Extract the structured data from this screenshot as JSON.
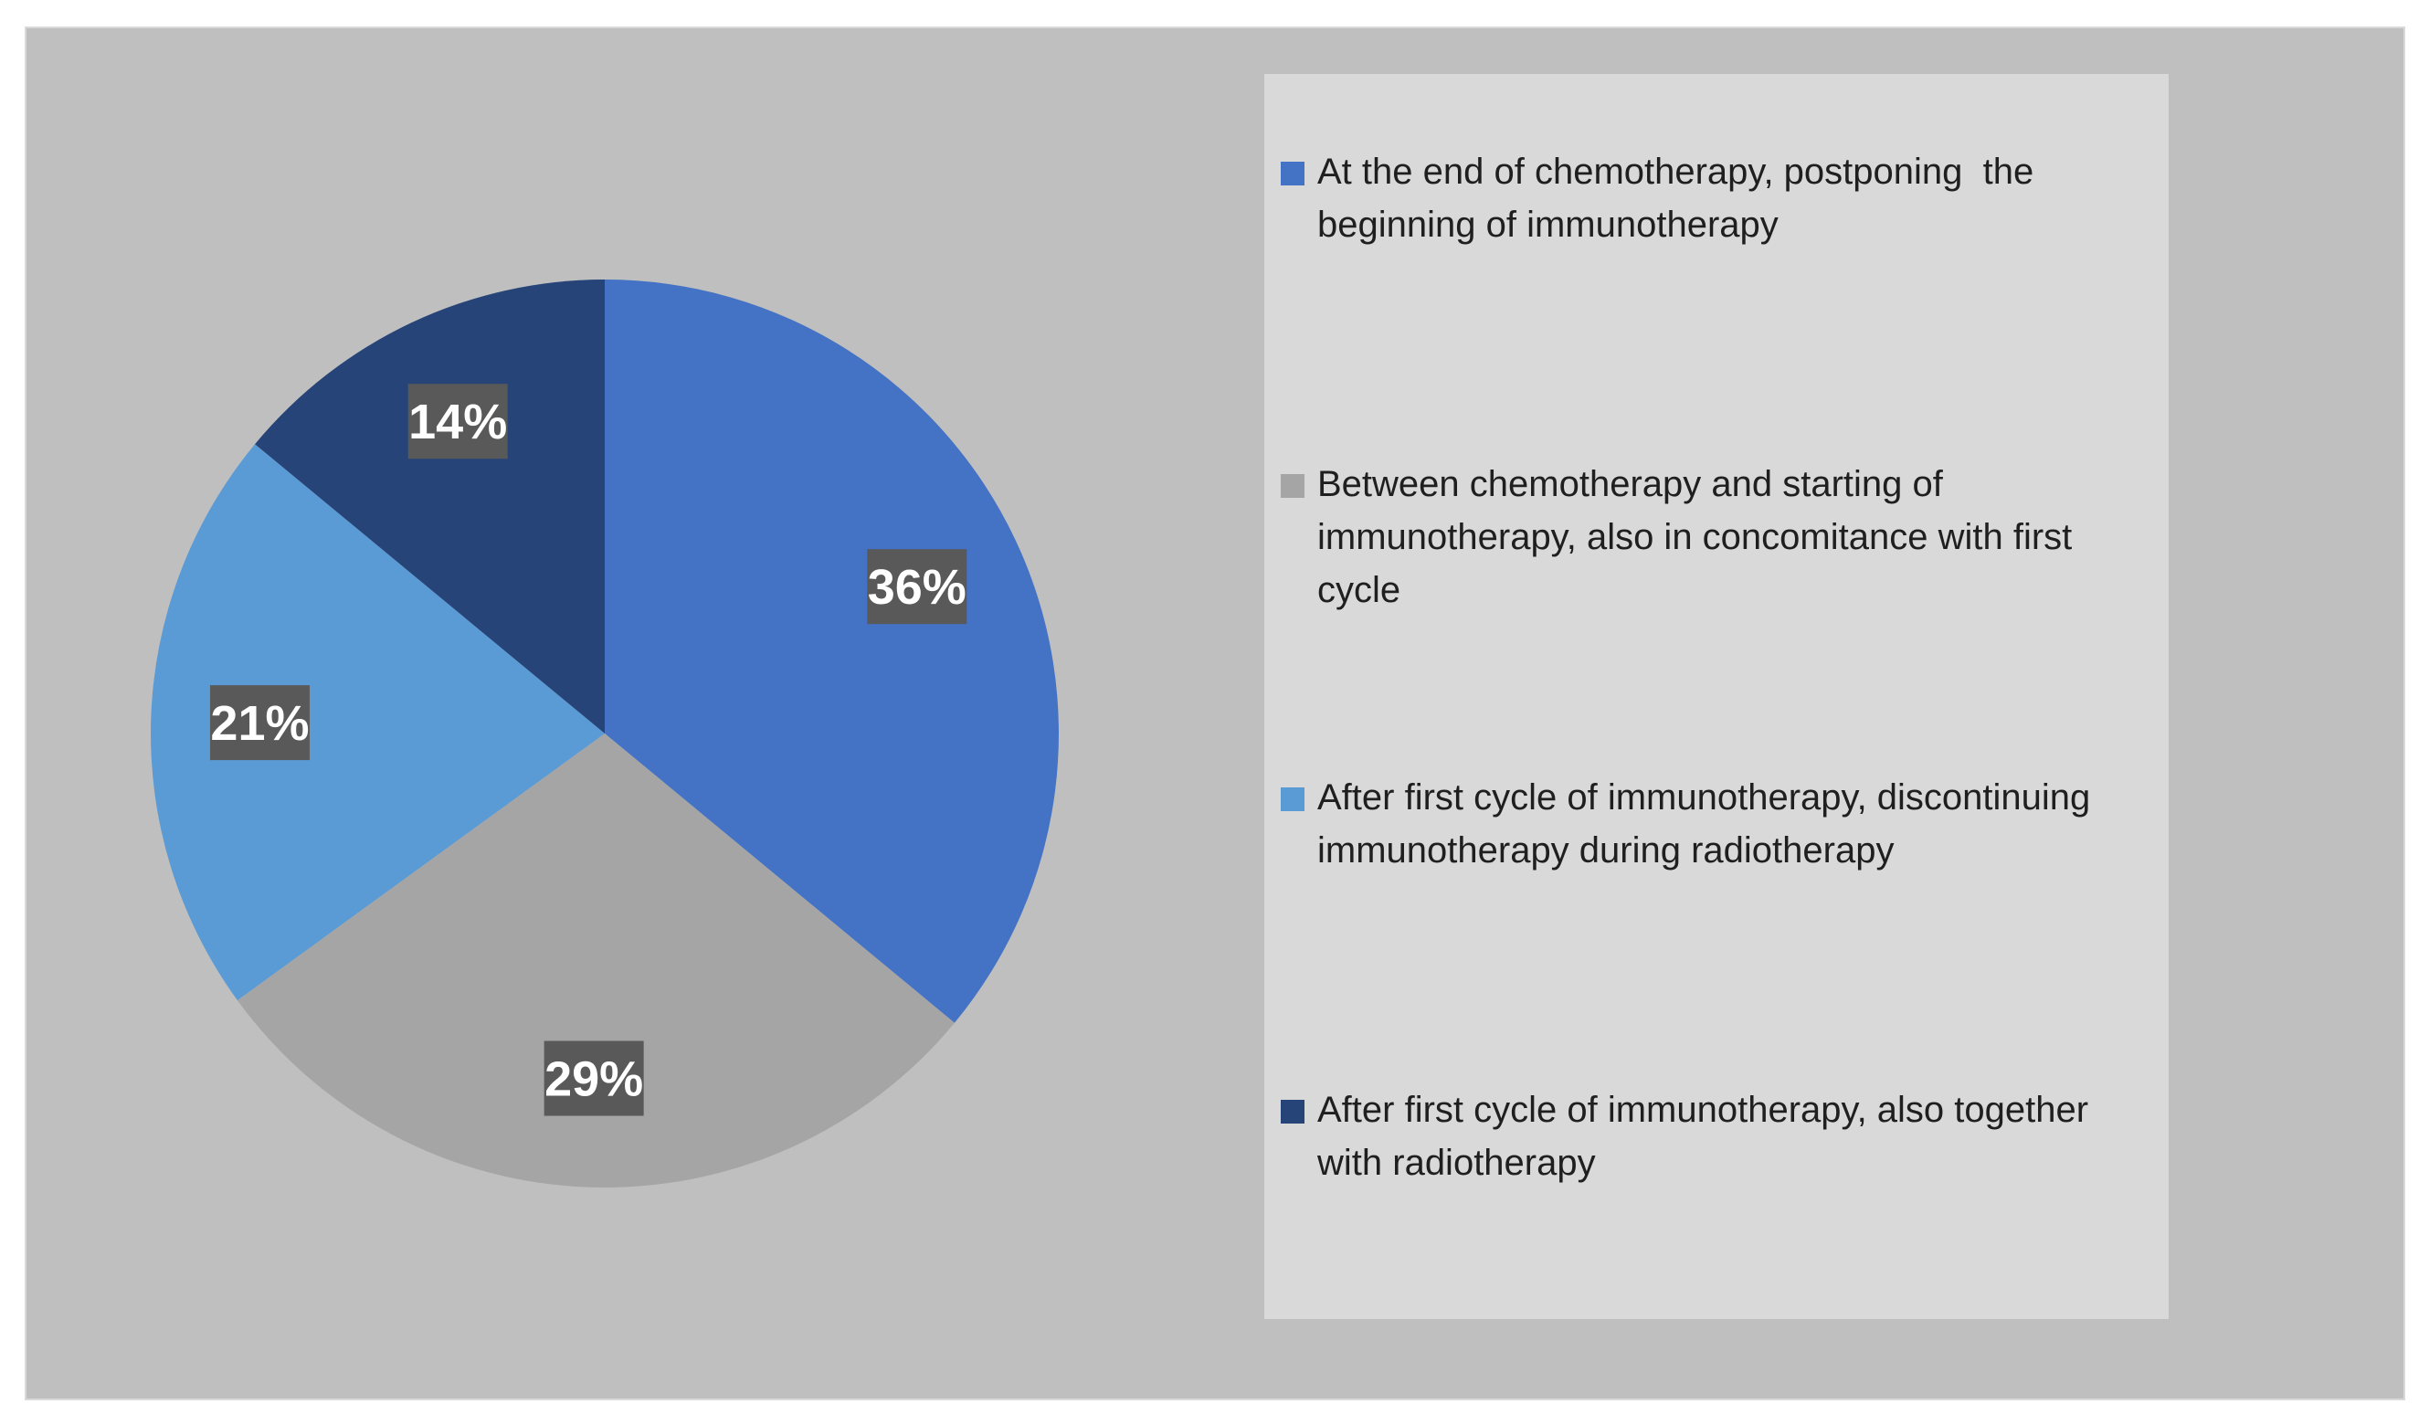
{
  "chart_data": {
    "type": "pie",
    "title": "",
    "series": [
      {
        "values": [
          36,
          29,
          21,
          14
        ],
        "labels": [
          "36%",
          "29%",
          "21%",
          "14%"
        ]
      }
    ],
    "categories": [
      "At the end of chemotherapy, postponing  the beginning of immunotherapy",
      "Between chemotherapy and starting of immunotherapy, also in concomitance with first cycle",
      "After first cycle of immunotherapy, discontinuing immunotherapy during radiotherapy",
      "After first cycle of immunotherapy, also together with radiotherapy"
    ],
    "colors": [
      "#4472c4",
      "#a5a5a5",
      "#5b9bd5",
      "#264478"
    ],
    "data_label_background": "#595959",
    "plot_background": "#bfbfbf",
    "legend_background": "#d9d9d9",
    "start_angle_deg": 0,
    "direction": "clockwise",
    "legend_position": "right"
  }
}
